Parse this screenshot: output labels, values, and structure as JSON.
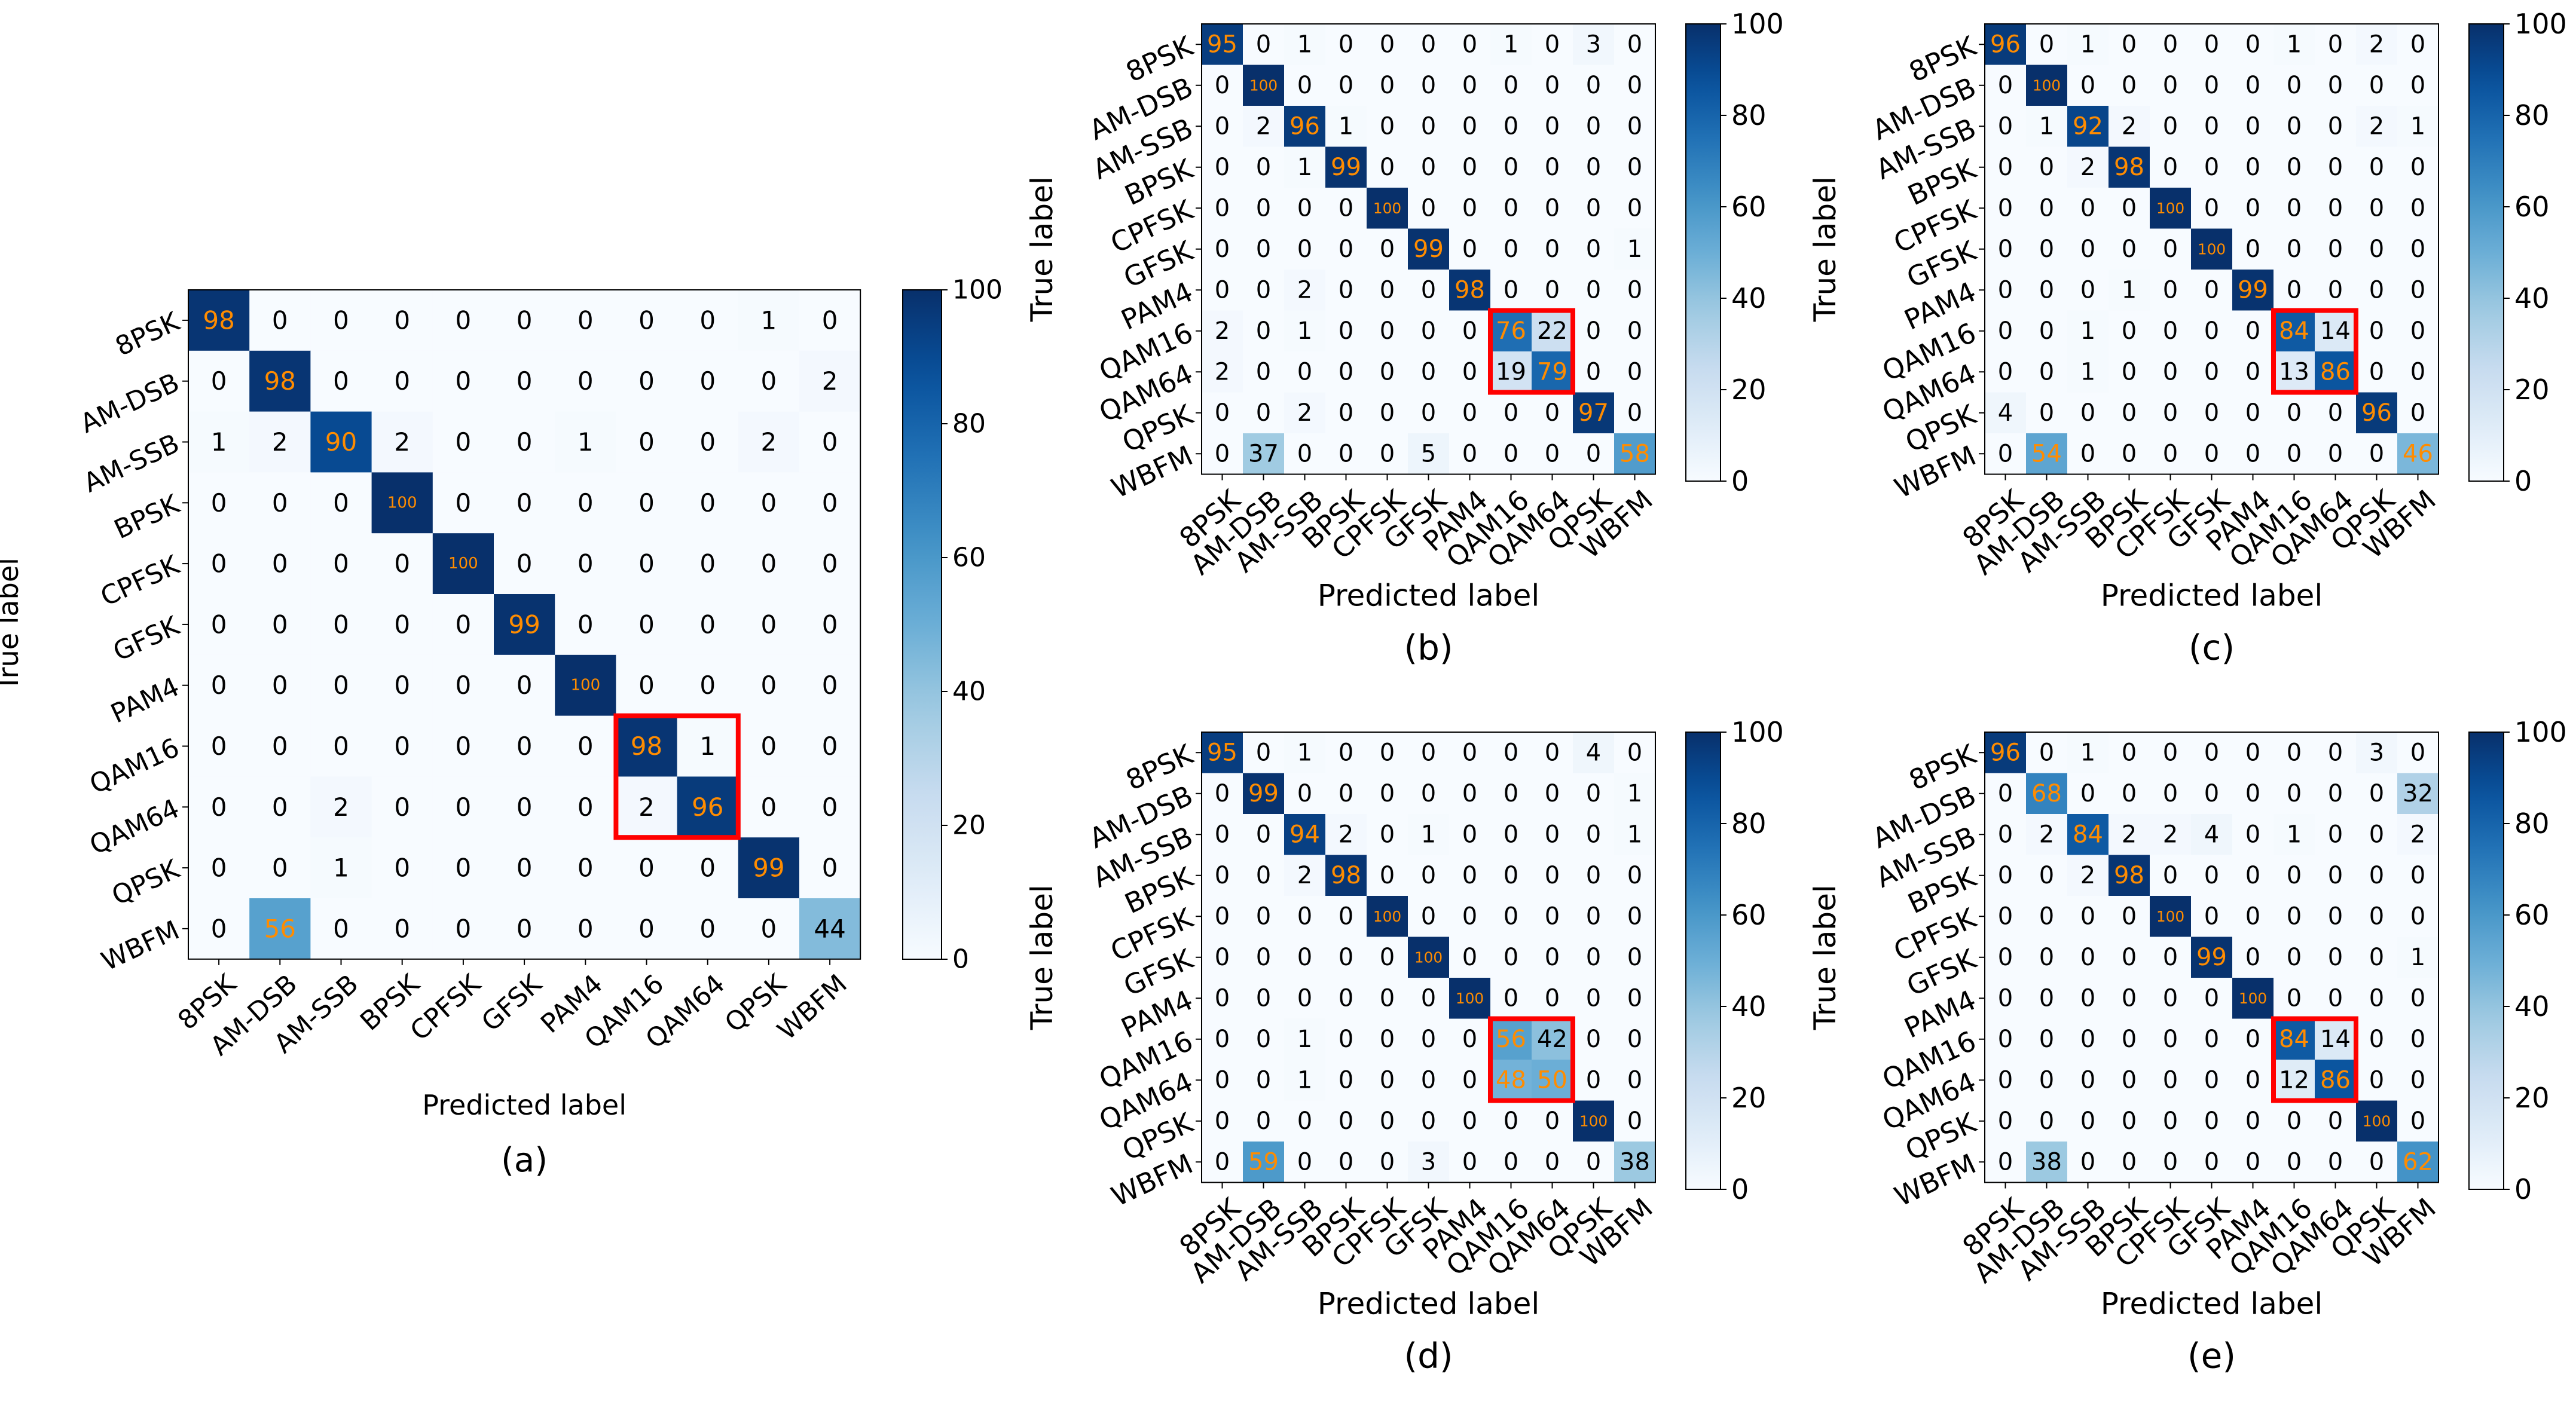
{
  "figure": {
    "class_labels": [
      "8PSK",
      "AM-DSB",
      "AM-SSB",
      "BPSK",
      "CPFSK",
      "GFSK",
      "PAM4",
      "QAM16",
      "QAM64",
      "QPSK",
      "WBFM"
    ],
    "xlabel": "Predicted label",
    "ylabel": "True label",
    "colorbar_ticks": [
      0,
      20,
      40,
      60,
      80,
      100
    ],
    "colormap": "Blues",
    "value_text_colors": {
      "on_light": "#000000",
      "on_dark": "#ff8c00"
    },
    "highlight_color": "#ff0000"
  },
  "chart_data": [
    {
      "type": "heatmap",
      "caption": "(a)",
      "xlabel": "Predicted label",
      "ylabel": "True label",
      "x": [
        "8PSK",
        "AM-DSB",
        "AM-SSB",
        "BPSK",
        "CPFSK",
        "GFSK",
        "PAM4",
        "QAM16",
        "QAM64",
        "QPSK",
        "WBFM"
      ],
      "y": [
        "8PSK",
        "AM-DSB",
        "AM-SSB",
        "BPSK",
        "CPFSK",
        "GFSK",
        "PAM4",
        "QAM16",
        "QAM64",
        "QPSK",
        "WBFM"
      ],
      "zlim": [
        0,
        100
      ],
      "values": [
        [
          98,
          0,
          0,
          0,
          0,
          0,
          0,
          0,
          0,
          1,
          0
        ],
        [
          0,
          98,
          0,
          0,
          0,
          0,
          0,
          0,
          0,
          0,
          2
        ],
        [
          1,
          2,
          90,
          2,
          0,
          0,
          1,
          0,
          0,
          2,
          0
        ],
        [
          0,
          0,
          0,
          100,
          0,
          0,
          0,
          0,
          0,
          0,
          0
        ],
        [
          0,
          0,
          0,
          0,
          100,
          0,
          0,
          0,
          0,
          0,
          0
        ],
        [
          0,
          0,
          0,
          0,
          0,
          99,
          0,
          0,
          0,
          0,
          0
        ],
        [
          0,
          0,
          0,
          0,
          0,
          0,
          100,
          0,
          0,
          0,
          0
        ],
        [
          0,
          0,
          0,
          0,
          0,
          0,
          0,
          98,
          1,
          0,
          0
        ],
        [
          0,
          0,
          2,
          0,
          0,
          0,
          0,
          2,
          96,
          0,
          0
        ],
        [
          0,
          0,
          1,
          0,
          0,
          0,
          0,
          0,
          0,
          99,
          0
        ],
        [
          0,
          56,
          0,
          0,
          0,
          0,
          0,
          0,
          0,
          0,
          44
        ]
      ],
      "highlight": {
        "rows": [
          "QAM16",
          "QAM64"
        ],
        "cols": [
          "QAM16",
          "QAM64"
        ]
      }
    },
    {
      "type": "heatmap",
      "caption": "(b)",
      "xlabel": "Predicted label",
      "ylabel": "True label",
      "x": [
        "8PSK",
        "AM-DSB",
        "AM-SSB",
        "BPSK",
        "CPFSK",
        "GFSK",
        "PAM4",
        "QAM16",
        "QAM64",
        "QPSK",
        "WBFM"
      ],
      "y": [
        "8PSK",
        "AM-DSB",
        "AM-SSB",
        "BPSK",
        "CPFSK",
        "GFSK",
        "PAM4",
        "QAM16",
        "QAM64",
        "QPSK",
        "WBFM"
      ],
      "zlim": [
        0,
        100
      ],
      "values": [
        [
          95,
          0,
          1,
          0,
          0,
          0,
          0,
          1,
          0,
          3,
          0
        ],
        [
          0,
          100,
          0,
          0,
          0,
          0,
          0,
          0,
          0,
          0,
          0
        ],
        [
          0,
          2,
          96,
          1,
          0,
          0,
          0,
          0,
          0,
          0,
          0
        ],
        [
          0,
          0,
          1,
          99,
          0,
          0,
          0,
          0,
          0,
          0,
          0
        ],
        [
          0,
          0,
          0,
          0,
          100,
          0,
          0,
          0,
          0,
          0,
          0
        ],
        [
          0,
          0,
          0,
          0,
          0,
          99,
          0,
          0,
          0,
          0,
          1
        ],
        [
          0,
          0,
          2,
          0,
          0,
          0,
          98,
          0,
          0,
          0,
          0
        ],
        [
          2,
          0,
          1,
          0,
          0,
          0,
          0,
          76,
          22,
          0,
          0
        ],
        [
          2,
          0,
          0,
          0,
          0,
          0,
          0,
          19,
          79,
          0,
          0
        ],
        [
          0,
          0,
          2,
          0,
          0,
          0,
          0,
          0,
          0,
          97,
          0
        ],
        [
          0,
          37,
          0,
          0,
          0,
          5,
          0,
          0,
          0,
          0,
          58
        ]
      ],
      "highlight": {
        "rows": [
          "QAM16",
          "QAM64"
        ],
        "cols": [
          "QAM16",
          "QAM64"
        ]
      }
    },
    {
      "type": "heatmap",
      "caption": "(c)",
      "xlabel": "Predicted label",
      "ylabel": "True label",
      "x": [
        "8PSK",
        "AM-DSB",
        "AM-SSB",
        "BPSK",
        "CPFSK",
        "GFSK",
        "PAM4",
        "QAM16",
        "QAM64",
        "QPSK",
        "WBFM"
      ],
      "y": [
        "8PSK",
        "AM-DSB",
        "AM-SSB",
        "BPSK",
        "CPFSK",
        "GFSK",
        "PAM4",
        "QAM16",
        "QAM64",
        "QPSK",
        "WBFM"
      ],
      "zlim": [
        0,
        100
      ],
      "values": [
        [
          96,
          0,
          1,
          0,
          0,
          0,
          0,
          1,
          0,
          2,
          0
        ],
        [
          0,
          100,
          0,
          0,
          0,
          0,
          0,
          0,
          0,
          0,
          0
        ],
        [
          0,
          1,
          92,
          2,
          0,
          0,
          0,
          0,
          0,
          2,
          1
        ],
        [
          0,
          0,
          2,
          98,
          0,
          0,
          0,
          0,
          0,
          0,
          0
        ],
        [
          0,
          0,
          0,
          0,
          100,
          0,
          0,
          0,
          0,
          0,
          0
        ],
        [
          0,
          0,
          0,
          0,
          0,
          100,
          0,
          0,
          0,
          0,
          0
        ],
        [
          0,
          0,
          0,
          1,
          0,
          0,
          99,
          0,
          0,
          0,
          0
        ],
        [
          0,
          0,
          1,
          0,
          0,
          0,
          0,
          84,
          14,
          0,
          0
        ],
        [
          0,
          0,
          1,
          0,
          0,
          0,
          0,
          13,
          86,
          0,
          0
        ],
        [
          4,
          0,
          0,
          0,
          0,
          0,
          0,
          0,
          0,
          96,
          0
        ],
        [
          0,
          54,
          0,
          0,
          0,
          0,
          0,
          0,
          0,
          0,
          46
        ]
      ],
      "highlight": {
        "rows": [
          "QAM16",
          "QAM64"
        ],
        "cols": [
          "QAM16",
          "QAM64"
        ]
      }
    },
    {
      "type": "heatmap",
      "caption": "(d)",
      "xlabel": "Predicted label",
      "ylabel": "True label",
      "x": [
        "8PSK",
        "AM-DSB",
        "AM-SSB",
        "BPSK",
        "CPFSK",
        "GFSK",
        "PAM4",
        "QAM16",
        "QAM64",
        "QPSK",
        "WBFM"
      ],
      "y": [
        "8PSK",
        "AM-DSB",
        "AM-SSB",
        "BPSK",
        "CPFSK",
        "GFSK",
        "PAM4",
        "QAM16",
        "QAM64",
        "QPSK",
        "WBFM"
      ],
      "zlim": [
        0,
        100
      ],
      "values": [
        [
          95,
          0,
          1,
          0,
          0,
          0,
          0,
          0,
          0,
          4,
          0
        ],
        [
          0,
          99,
          0,
          0,
          0,
          0,
          0,
          0,
          0,
          0,
          1
        ],
        [
          0,
          0,
          94,
          2,
          0,
          1,
          0,
          0,
          0,
          0,
          1
        ],
        [
          0,
          0,
          2,
          98,
          0,
          0,
          0,
          0,
          0,
          0,
          0
        ],
        [
          0,
          0,
          0,
          0,
          100,
          0,
          0,
          0,
          0,
          0,
          0
        ],
        [
          0,
          0,
          0,
          0,
          0,
          100,
          0,
          0,
          0,
          0,
          0
        ],
        [
          0,
          0,
          0,
          0,
          0,
          0,
          100,
          0,
          0,
          0,
          0
        ],
        [
          0,
          0,
          1,
          0,
          0,
          0,
          0,
          56,
          42,
          0,
          0
        ],
        [
          0,
          0,
          1,
          0,
          0,
          0,
          0,
          48,
          50,
          0,
          0
        ],
        [
          0,
          0,
          0,
          0,
          0,
          0,
          0,
          0,
          0,
          100,
          0
        ],
        [
          0,
          59,
          0,
          0,
          0,
          3,
          0,
          0,
          0,
          0,
          38
        ]
      ],
      "highlight": {
        "rows": [
          "QAM16",
          "QAM64"
        ],
        "cols": [
          "QAM16",
          "QAM64"
        ]
      }
    },
    {
      "type": "heatmap",
      "caption": "(e)",
      "xlabel": "Predicted label",
      "ylabel": "True label",
      "x": [
        "8PSK",
        "AM-DSB",
        "AM-SSB",
        "BPSK",
        "CPFSK",
        "GFSK",
        "PAM4",
        "QAM16",
        "QAM64",
        "QPSK",
        "WBFM"
      ],
      "y": [
        "8PSK",
        "AM-DSB",
        "AM-SSB",
        "BPSK",
        "CPFSK",
        "GFSK",
        "PAM4",
        "QAM16",
        "QAM64",
        "QPSK",
        "WBFM"
      ],
      "zlim": [
        0,
        100
      ],
      "values": [
        [
          96,
          0,
          1,
          0,
          0,
          0,
          0,
          0,
          0,
          3,
          0
        ],
        [
          0,
          68,
          0,
          0,
          0,
          0,
          0,
          0,
          0,
          0,
          32
        ],
        [
          0,
          2,
          84,
          2,
          2,
          4,
          0,
          1,
          0,
          0,
          2
        ],
        [
          0,
          0,
          2,
          98,
          0,
          0,
          0,
          0,
          0,
          0,
          0
        ],
        [
          0,
          0,
          0,
          0,
          100,
          0,
          0,
          0,
          0,
          0,
          0
        ],
        [
          0,
          0,
          0,
          0,
          0,
          99,
          0,
          0,
          0,
          0,
          1
        ],
        [
          0,
          0,
          0,
          0,
          0,
          0,
          100,
          0,
          0,
          0,
          0
        ],
        [
          0,
          0,
          0,
          0,
          0,
          0,
          0,
          84,
          14,
          0,
          0
        ],
        [
          0,
          0,
          0,
          0,
          0,
          0,
          0,
          12,
          86,
          0,
          0
        ],
        [
          0,
          0,
          0,
          0,
          0,
          0,
          0,
          0,
          0,
          100,
          0
        ],
        [
          0,
          38,
          0,
          0,
          0,
          0,
          0,
          0,
          0,
          0,
          62
        ]
      ],
      "highlight": {
        "rows": [
          "QAM16",
          "QAM64"
        ],
        "cols": [
          "QAM16",
          "QAM64"
        ]
      }
    }
  ]
}
